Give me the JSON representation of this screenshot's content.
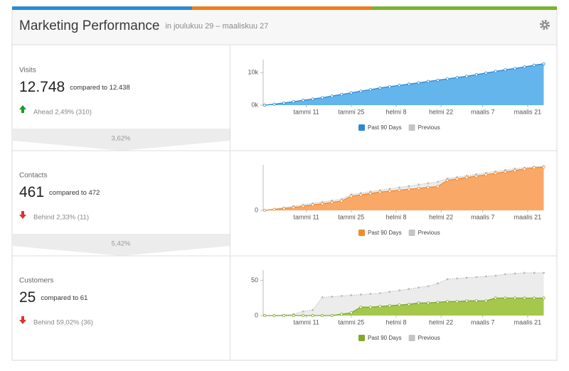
{
  "header": {
    "title": "Marketing Performance",
    "date_range": "in joulukuu 29 – maaliskuu 27"
  },
  "panels": [
    {
      "label": "Visits",
      "value": "12.748",
      "comparison": "compared to 12.438",
      "status": "Ahead 2,49% (310)",
      "trend": "up",
      "conversion": "3,62%",
      "chart": {
        "type": "area",
        "xlim": [
          0,
          88
        ],
        "ylim": [
          0,
          14000
        ],
        "yticks": [
          {
            "value": 0,
            "label": "0k"
          },
          {
            "value": 10000,
            "label": "10k"
          }
        ],
        "xticks": [
          {
            "value": 13,
            "label": "tammi 11"
          },
          {
            "value": 27,
            "label": "tammi 25"
          },
          {
            "value": 41,
            "label": "helmi 8"
          },
          {
            "value": 55,
            "label": "helmi 22"
          },
          {
            "value": 68,
            "label": "maalis 7"
          },
          {
            "value": 82,
            "label": "maalis 21"
          }
        ],
        "x": [
          0,
          3,
          6,
          9,
          12,
          15,
          18,
          21,
          24,
          27,
          30,
          33,
          36,
          39,
          42,
          45,
          48,
          51,
          54,
          57,
          60,
          63,
          66,
          69,
          72,
          75,
          78,
          81,
          84,
          87
        ],
        "series": [
          {
            "name": "Past 90 Days",
            "color": "#2a8ad4",
            "fill": "#64b5ec",
            "values": [
              0,
              300,
              700,
              1100,
              1500,
              1900,
              2300,
              2800,
              3300,
              3800,
              4300,
              4800,
              5300,
              5700,
              6100,
              6500,
              6900,
              7300,
              7700,
              8100,
              8500,
              8900,
              9400,
              9900,
              10400,
              10900,
              11300,
              11800,
              12300,
              12748
            ]
          },
          {
            "name": "Previous",
            "color": "#bdbdbd",
            "fill": "#ececec",
            "values": [
              0,
              290,
              680,
              1080,
              1470,
              1860,
              2260,
              2740,
              3230,
              3720,
              4200,
              4690,
              5170,
              5570,
              5960,
              6350,
              6740,
              7130,
              7520,
              7900,
              8290,
              8680,
              9160,
              9640,
              10120,
              10600,
              10990,
              11480,
              11960,
              12438
            ]
          }
        ]
      }
    },
    {
      "label": "Contacts",
      "value": "461",
      "comparison": "compared to 472",
      "status": "Behind 2,33% (11)",
      "trend": "down",
      "conversion": "5,42%",
      "chart": {
        "type": "area",
        "xlim": [
          0,
          88
        ],
        "ylim": [
          0,
          485
        ],
        "yticks": [
          0
        ],
        "xticks": [
          {
            "value": 13,
            "label": "tammi 11"
          },
          {
            "value": 27,
            "label": "tammi 25"
          },
          {
            "value": 41,
            "label": "helmi 8"
          },
          {
            "value": 55,
            "label": "helmi 22"
          },
          {
            "value": 68,
            "label": "maalis 7"
          },
          {
            "value": 82,
            "label": "maalis 21"
          }
        ],
        "x": [
          0,
          3,
          6,
          9,
          12,
          15,
          18,
          21,
          24,
          27,
          30,
          33,
          36,
          39,
          42,
          45,
          48,
          51,
          54,
          57,
          60,
          63,
          66,
          69,
          72,
          75,
          78,
          81,
          84,
          87
        ],
        "series": [
          {
            "name": "Past 90 Days",
            "color": "#ef8a2e",
            "fill": "#f9a868",
            "values": [
              0,
              10,
              20,
              30,
              45,
              60,
              70,
              85,
              100,
              150,
              165,
              180,
              195,
              205,
              215,
              225,
              235,
              245,
              255,
              320,
              335,
              350,
              365,
              380,
              395,
              410,
              425,
              440,
              455,
              461
            ]
          },
          {
            "name": "Previous",
            "color": "#bdbdbd",
            "fill": "#ececec",
            "values": [
              0,
              15,
              30,
              45,
              60,
              75,
              90,
              105,
              120,
              170,
              185,
              200,
              215,
              230,
              245,
              260,
              275,
              290,
              305,
              340,
              355,
              370,
              385,
              400,
              415,
              430,
              445,
              455,
              465,
              472
            ]
          }
        ]
      }
    },
    {
      "label": "Customers",
      "value": "25",
      "comparison": "compared to 61",
      "status": "Behind 59,02% (36)",
      "trend": "down",
      "chart": {
        "type": "area",
        "xlim": [
          0,
          88
        ],
        "ylim": [
          0,
          65
        ],
        "yticks": [
          0,
          50
        ],
        "xticks": [
          {
            "value": 13,
            "label": "tammi 11"
          },
          {
            "value": 27,
            "label": "tammi 25"
          },
          {
            "value": 41,
            "label": "helmi 8"
          },
          {
            "value": 55,
            "label": "helmi 22"
          },
          {
            "value": 68,
            "label": "maalis 7"
          },
          {
            "value": 82,
            "label": "maalis 21"
          }
        ],
        "x": [
          0,
          3,
          6,
          9,
          12,
          15,
          18,
          21,
          24,
          27,
          30,
          33,
          36,
          39,
          42,
          45,
          48,
          51,
          54,
          57,
          60,
          63,
          66,
          69,
          72,
          75,
          78,
          81,
          84,
          87
        ],
        "series": [
          {
            "name": "Past 90 Days",
            "color": "#7fa92a",
            "fill": "#a5c84c",
            "values": [
              0,
              0,
              0,
              0,
              0,
              0,
              0,
              0,
              2,
              4,
              12,
              12,
              13,
              14,
              15,
              16,
              18,
              18,
              19,
              20,
              20,
              21,
              21,
              21,
              25,
              25,
              25,
              25,
              25,
              25
            ]
          },
          {
            "name": "Previous",
            "color": "#bdbdbd",
            "fill": "#ececec",
            "values": [
              0,
              0,
              1,
              2,
              6,
              8,
              26,
              27,
              28,
              29,
              30,
              31,
              32,
              34,
              36,
              38,
              40,
              42,
              46,
              52,
              53,
              54,
              55,
              56,
              57,
              59,
              60,
              61,
              61,
              61
            ]
          }
        ]
      }
    }
  ]
}
